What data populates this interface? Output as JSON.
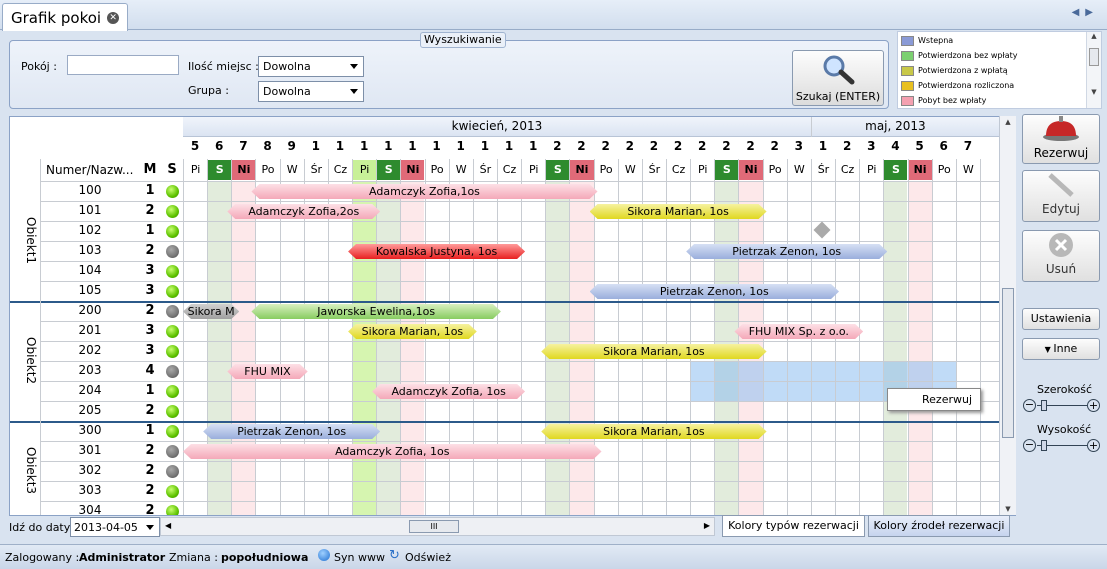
{
  "tab": {
    "title": "Grafik pokoi"
  },
  "search": {
    "legend": "Wyszukiwanie",
    "room_label": "Pokój :",
    "room_value": "",
    "seats_label": "Ilość miejsc :",
    "seats_value": "Dowolna",
    "group_label": "Grupa :",
    "group_value": "Dowolna",
    "search_button": "Szukaj (ENTER)"
  },
  "legend": [
    {
      "label": "Wstepna",
      "color": "#8a9ad6"
    },
    {
      "label": "Potwierdzona bez wpłaty",
      "color": "#7cd070"
    },
    {
      "label": "Potwierdzona z wpłatą",
      "color": "#c8c848"
    },
    {
      "label": "Potwierdzona rozliczona",
      "color": "#e8c020"
    },
    {
      "label": "Pobyt bez wpłaty",
      "color": "#f4a0b0"
    }
  ],
  "grid": {
    "months": [
      "kwiecień, 2013",
      "maj, 2013"
    ],
    "col_header_name": "Numer/Nazw...",
    "col_header_m": "M",
    "col_header_s": "S",
    "days": [
      {
        "d": "5",
        "w": "Pi",
        "t": ""
      },
      {
        "d": "6",
        "w": "S",
        "t": "sat"
      },
      {
        "d": "7",
        "w": "Ni",
        "t": "sun"
      },
      {
        "d": "8",
        "w": "Po",
        "t": ""
      },
      {
        "d": "9",
        "w": "W",
        "t": ""
      },
      {
        "d": "1",
        "w": "Śr",
        "t": ""
      },
      {
        "d": "1",
        "w": "Cz",
        "t": ""
      },
      {
        "d": "1",
        "w": "Pi",
        "t": "today"
      },
      {
        "d": "1",
        "w": "S",
        "t": "sat"
      },
      {
        "d": "1",
        "w": "Ni",
        "t": "sun"
      },
      {
        "d": "1",
        "w": "Po",
        "t": ""
      },
      {
        "d": "1",
        "w": "W",
        "t": ""
      },
      {
        "d": "1",
        "w": "Śr",
        "t": ""
      },
      {
        "d": "1",
        "w": "Cz",
        "t": ""
      },
      {
        "d": "1",
        "w": "Pi",
        "t": ""
      },
      {
        "d": "2",
        "w": "S",
        "t": "sat"
      },
      {
        "d": "2",
        "w": "Ni",
        "t": "sun"
      },
      {
        "d": "2",
        "w": "Po",
        "t": ""
      },
      {
        "d": "2",
        "w": "W",
        "t": ""
      },
      {
        "d": "2",
        "w": "Śr",
        "t": ""
      },
      {
        "d": "2",
        "w": "Cz",
        "t": ""
      },
      {
        "d": "2",
        "w": "Pi",
        "t": ""
      },
      {
        "d": "2",
        "w": "S",
        "t": "sat"
      },
      {
        "d": "2",
        "w": "Ni",
        "t": "sun"
      },
      {
        "d": "2",
        "w": "Po",
        "t": ""
      },
      {
        "d": "3",
        "w": "W",
        "t": ""
      },
      {
        "d": "1",
        "w": "Śr",
        "t": ""
      },
      {
        "d": "2",
        "w": "Cz",
        "t": ""
      },
      {
        "d": "3",
        "w": "Pi",
        "t": ""
      },
      {
        "d": "4",
        "w": "S",
        "t": "sat"
      },
      {
        "d": "5",
        "w": "Ni",
        "t": "sun"
      },
      {
        "d": "6",
        "w": "Po",
        "t": ""
      },
      {
        "d": "7",
        "w": "W",
        "t": ""
      }
    ],
    "groups": [
      {
        "name": "Obiekt1",
        "rows": [
          {
            "n": "100",
            "m": "1",
            "s": "g"
          },
          {
            "n": "101",
            "m": "2",
            "s": "g"
          },
          {
            "n": "102",
            "m": "1",
            "s": "g"
          },
          {
            "n": "103",
            "m": "2",
            "s": "k"
          },
          {
            "n": "104",
            "m": "3",
            "s": "g"
          },
          {
            "n": "105",
            "m": "3",
            "s": "g"
          }
        ]
      },
      {
        "name": "Obiekt2",
        "rows": [
          {
            "n": "200",
            "m": "2",
            "s": "k"
          },
          {
            "n": "201",
            "m": "3",
            "s": "g"
          },
          {
            "n": "202",
            "m": "3",
            "s": "g"
          },
          {
            "n": "203",
            "m": "4",
            "s": "k"
          },
          {
            "n": "204",
            "m": "1",
            "s": "g"
          },
          {
            "n": "205",
            "m": "2",
            "s": "g"
          }
        ]
      },
      {
        "name": "Obiekt3",
        "rows": [
          {
            "n": "300",
            "m": "1",
            "s": "g"
          },
          {
            "n": "301",
            "m": "2",
            "s": "k"
          },
          {
            "n": "302",
            "m": "2",
            "s": "k"
          },
          {
            "n": "303",
            "m": "2",
            "s": "g"
          },
          {
            "n": "304",
            "m": "2",
            "s": "g"
          }
        ]
      }
    ],
    "reservations": [
      {
        "row": 0,
        "start": 3,
        "end": 17,
        "label": "Adamczyk Zofia,1os",
        "color": "pink"
      },
      {
        "row": 1,
        "start": 2,
        "end": 8,
        "label": "Adamczyk Zofia,2os",
        "color": "pink"
      },
      {
        "row": 1,
        "start": 17,
        "end": 24,
        "label": "Sikora Marian, 1os",
        "color": "yellow"
      },
      {
        "row": 3,
        "start": 7,
        "end": 14,
        "label": "Kowalska Justyna, 1os",
        "color": "red"
      },
      {
        "row": 3,
        "start": 21,
        "end": 29,
        "label": "Pietrzak Zenon, 1os",
        "color": "blue"
      },
      {
        "row": 5,
        "start": 17,
        "end": 27,
        "label": "Pietrzak Zenon, 1os",
        "color": "blue"
      },
      {
        "row": 6,
        "start": 0,
        "end": 2,
        "label": "Sikora M",
        "color": "gray"
      },
      {
        "row": 6,
        "start": 3,
        "end": 13,
        "label": "Jaworska Ewelina,1os",
        "color": "green"
      },
      {
        "row": 7,
        "start": 7,
        "end": 12,
        "label": "Sikora Marian, 1os",
        "color": "yellow"
      },
      {
        "row": 7,
        "start": 23,
        "end": 28,
        "label": "FHU MIX Sp. z o.o.",
        "color": "pink"
      },
      {
        "row": 8,
        "start": 15,
        "end": 24,
        "label": "Sikora Marian, 1os",
        "color": "yellow"
      },
      {
        "row": 9,
        "start": 2,
        "end": 5,
        "label": "FHU MIX",
        "color": "pink"
      },
      {
        "row": 10,
        "start": 8,
        "end": 14,
        "label": "Adamczyk Zofia, 1os",
        "color": "pink"
      },
      {
        "row": 12,
        "start": 1,
        "end": 8,
        "label": "Pietrzak Zenon, 1os",
        "color": "blue"
      },
      {
        "row": 12,
        "start": 15,
        "end": 24,
        "label": "Sikora Marian, 1os",
        "color": "yellow"
      },
      {
        "row": 13,
        "start": 0,
        "end": 17,
        "label": "Adamczyk Zofia, 1os",
        "color": "pink"
      }
    ],
    "goto_label": "Idź do daty :",
    "goto_value": "2013-04-05"
  },
  "context_menu": {
    "item": "Rezerwuj"
  },
  "side": {
    "reserve": "Rezerwuj",
    "edit": "Edytuj",
    "delete": "Usuń",
    "settings": "Ustawienia",
    "other": "Inne",
    "width_label": "Szerokość",
    "height_label": "Wysokość"
  },
  "bottom_tabs": {
    "types": "Kolory typów rezerwacji",
    "sources": "Kolory źrodeł rezerwacji"
  },
  "status": {
    "logged_label": "Zalogowany :",
    "logged_value": "Administrator",
    "shift_label": "Zmiana :",
    "shift_value": "popołudniowa",
    "sync": "Syn www",
    "refresh": "Odśwież"
  }
}
